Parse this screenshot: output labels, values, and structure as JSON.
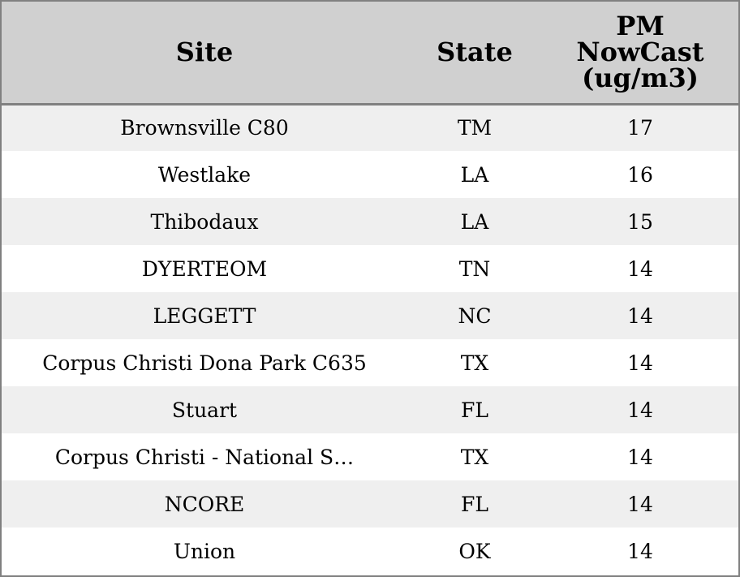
{
  "table": {
    "headers": {
      "site": "Site",
      "state": "State",
      "pm_line1": "PM",
      "pm_line2": "NowCast",
      "pm_line3": "(ug/m3)"
    },
    "rows": [
      {
        "site": "Brownsville C80",
        "state": "TM",
        "pm": "17"
      },
      {
        "site": "Westlake",
        "state": "LA",
        "pm": "16"
      },
      {
        "site": "Thibodaux",
        "state": "LA",
        "pm": "15"
      },
      {
        "site": "DYERTEOM",
        "state": "TN",
        "pm": "14"
      },
      {
        "site": "LEGGETT",
        "state": "NC",
        "pm": "14"
      },
      {
        "site": "Corpus Christi Dona Park C635",
        "state": "TX",
        "pm": "14"
      },
      {
        "site": "Stuart",
        "state": "FL",
        "pm": "14"
      },
      {
        "site": "Corpus Christi - National S…",
        "state": "TX",
        "pm": "14"
      },
      {
        "site": "NCORE",
        "state": "FL",
        "pm": "14"
      },
      {
        "site": "Union",
        "state": "OK",
        "pm": "14"
      }
    ]
  },
  "colors": {
    "header_bg": "#d0d0d0",
    "row_alt_bg": "#efefef",
    "row_bg": "#ffffff",
    "border": "#808080"
  }
}
